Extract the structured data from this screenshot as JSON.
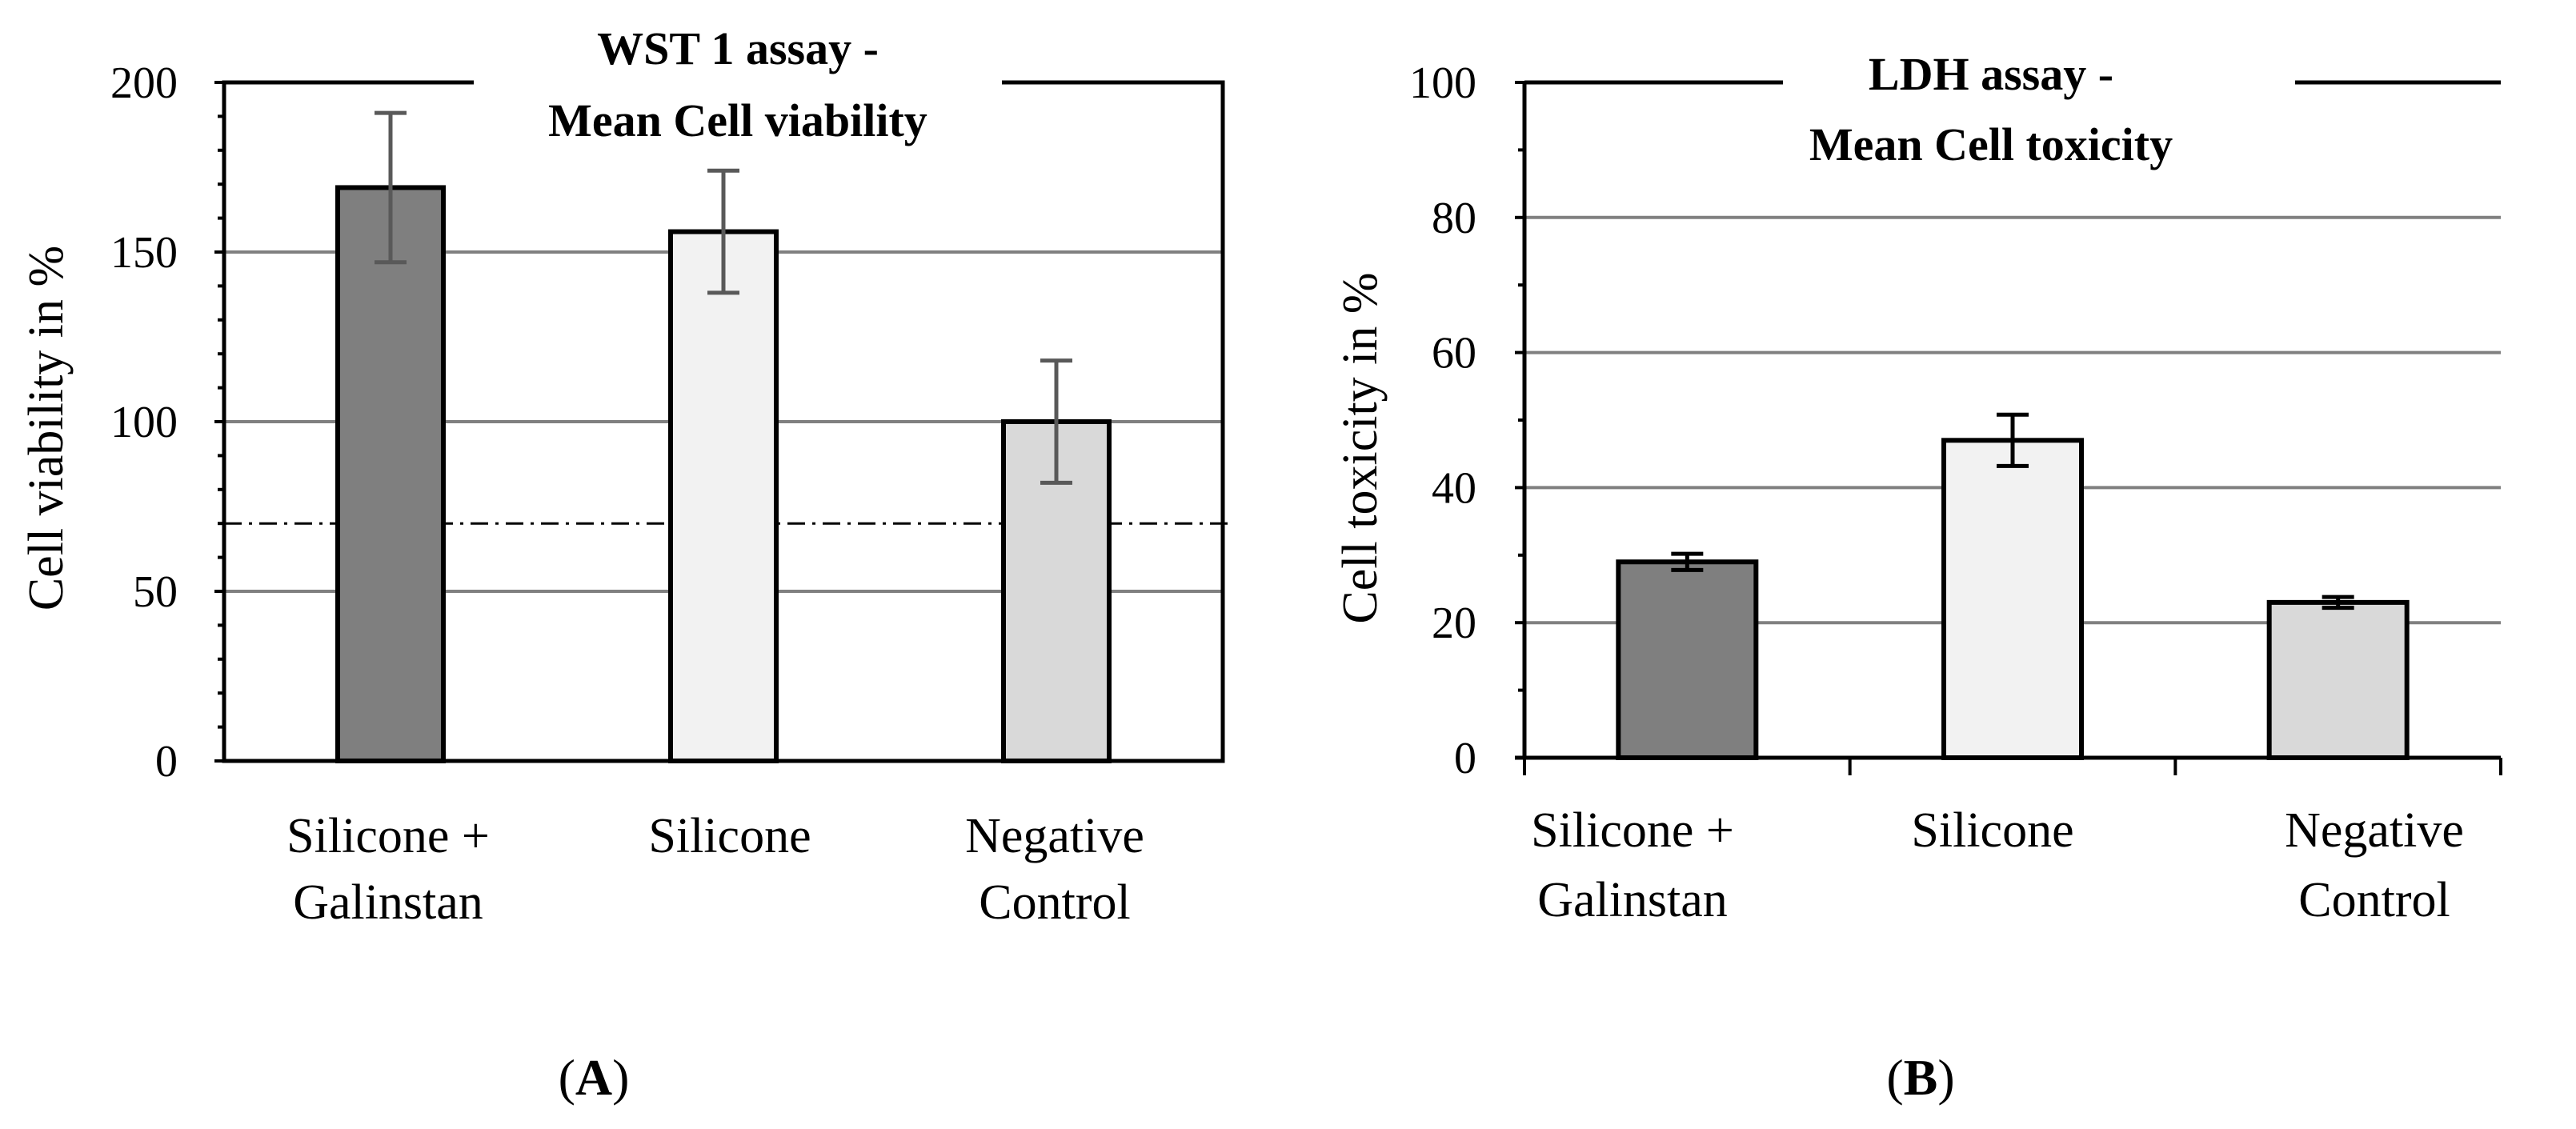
{
  "chart_data": [
    {
      "type": "bar",
      "panel": "A",
      "title_lines": [
        "WST 1 assay -",
        "Mean Cell viability"
      ],
      "ylabel": "Cell viability in %",
      "xlabel": "",
      "ylim": [
        0,
        200
      ],
      "yticks": [
        0,
        50,
        100,
        150,
        200
      ],
      "ytick_labels": [
        "0",
        "50",
        "100",
        "150",
        "200"
      ],
      "minor_tick_step": 10,
      "gridlines": [
        50,
        100,
        150
      ],
      "threshold_line": 70,
      "categories": [
        {
          "lines": [
            "Silicone +",
            "Galinstan"
          ]
        },
        {
          "lines": [
            "Silicone"
          ]
        },
        {
          "lines": [
            "Negative",
            "Control"
          ]
        }
      ],
      "values": [
        169,
        156,
        100
      ],
      "errors": [
        22,
        18,
        18
      ],
      "bar_colors": [
        "#7f7f7f",
        "#f2f2f2",
        "#d9d9d9"
      ],
      "error_color": "#595959"
    },
    {
      "type": "bar",
      "panel": "B",
      "title_lines": [
        "LDH assay -",
        "Mean Cell toxicity"
      ],
      "ylabel": "Cell toxicity in %",
      "xlabel": "",
      "ylim": [
        0,
        100
      ],
      "yticks": [
        0,
        20,
        40,
        60,
        80,
        100
      ],
      "ytick_labels": [
        "0",
        "20",
        "40",
        "60",
        "80",
        "100"
      ],
      "minor_tick_step": 10,
      "gridlines": [
        20,
        40,
        60,
        80
      ],
      "threshold_line": null,
      "categories": [
        {
          "lines": [
            "Silicone +",
            "Galinstan"
          ]
        },
        {
          "lines": [
            "Silicone"
          ]
        },
        {
          "lines": [
            "Negative",
            "Control"
          ]
        }
      ],
      "values": [
        29,
        47,
        23
      ],
      "errors": [
        1.2,
        3.8,
        0.8
      ],
      "bar_colors": [
        "#7f7f7f",
        "#f2f2f2",
        "#d9d9d9"
      ],
      "error_color": "#000000"
    }
  ],
  "colors": {
    "grid": "#808080",
    "axis": "#000000",
    "bar_outline": "#000000"
  }
}
